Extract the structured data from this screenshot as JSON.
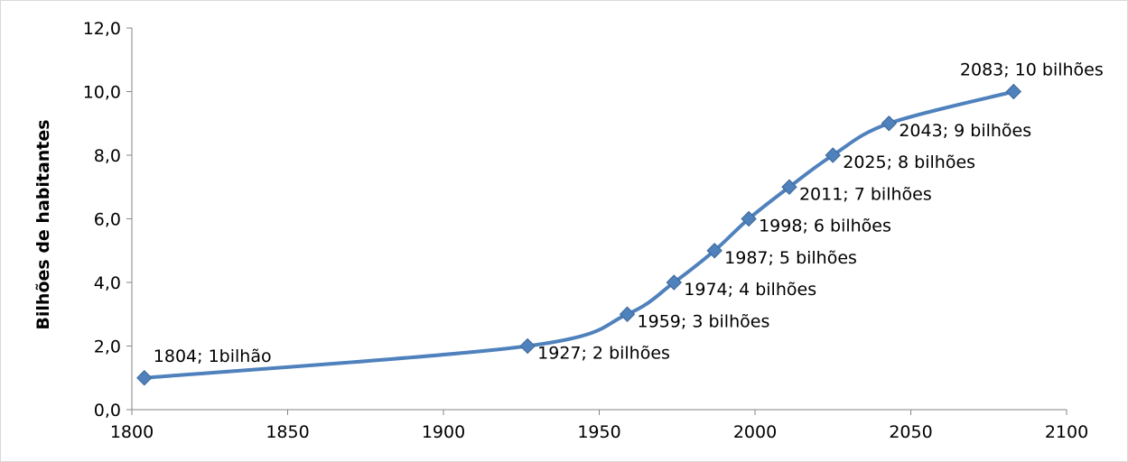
{
  "chart_data": {
    "type": "line",
    "title": "",
    "xlabel": "",
    "ylabel": "Bilhões de habitantes",
    "xlim": [
      1800,
      2100
    ],
    "ylim": [
      0,
      12
    ],
    "x_ticks": [
      1800,
      1850,
      1900,
      1950,
      2000,
      2050,
      2100
    ],
    "x_tick_labels": [
      "1800",
      "1850",
      "1900",
      "1950",
      "2000",
      "2050",
      "2100"
    ],
    "y_ticks": [
      0,
      2,
      4,
      6,
      8,
      10,
      12
    ],
    "y_tick_labels": [
      "0,0",
      "2,0",
      "4,0",
      "6,0",
      "8,0",
      "10,0",
      "12,0"
    ],
    "grid": false,
    "smooth": true,
    "marker": "diamond",
    "colors": {
      "series": "#4f81bd",
      "marker_edge": "#3c6896",
      "axis": "#868686",
      "frame": "#d9d9d9"
    },
    "series": [
      {
        "points": [
          {
            "x": 1804,
            "y": 1,
            "label": "1804; 1bilhão"
          },
          {
            "x": 1927,
            "y": 2,
            "label": "1927; 2 bilhões"
          },
          {
            "x": 1959,
            "y": 3,
            "label": "1959; 3 bilhões"
          },
          {
            "x": 1974,
            "y": 4,
            "label": "1974; 4 bilhões"
          },
          {
            "x": 1987,
            "y": 5,
            "label": "1987; 5 bilhões"
          },
          {
            "x": 1998,
            "y": 6,
            "label": "1998; 6 bilhões"
          },
          {
            "x": 2011,
            "y": 7,
            "label": "2011; 7 bilhões"
          },
          {
            "x": 2025,
            "y": 8,
            "label": "2025; 8 bilhões"
          },
          {
            "x": 2043,
            "y": 9,
            "label": "2043; 9 bilhões"
          },
          {
            "x": 2083,
            "y": 10,
            "label": "2083; 10 bilhões"
          }
        ]
      }
    ]
  }
}
